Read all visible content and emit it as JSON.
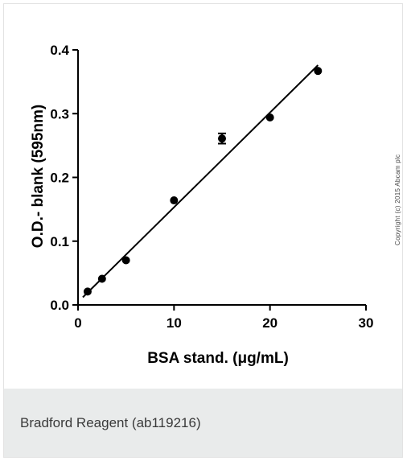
{
  "caption": "Bradford Reagent (ab119216)",
  "copyright": "Copyright (c) 2015 Abcam plc",
  "chart_data": {
    "type": "scatter",
    "title": "",
    "xlabel": "BSA stand. (μg/mL)",
    "ylabel": "O.D.- blank (595nm)",
    "xlim": [
      0,
      30
    ],
    "ylim": [
      0.0,
      0.4
    ],
    "x_ticks": [
      0,
      10,
      20,
      30
    ],
    "x_tick_labels": [
      "0",
      "10",
      "20",
      "30"
    ],
    "y_ticks": [
      0.0,
      0.1,
      0.2,
      0.3,
      0.4
    ],
    "y_tick_labels": [
      "0.0",
      "0.1",
      "0.2",
      "0.3",
      "0.4"
    ],
    "grid": false,
    "points": [
      {
        "x": 1,
        "y": 0.021
      },
      {
        "x": 2.5,
        "y": 0.041
      },
      {
        "x": 5,
        "y": 0.07
      },
      {
        "x": 10,
        "y": 0.164
      },
      {
        "x": 15,
        "y": 0.261,
        "err": 0.008
      },
      {
        "x": 20,
        "y": 0.294
      },
      {
        "x": 25,
        "y": 0.367
      }
    ],
    "fit_line": {
      "x": [
        0.5,
        25
      ],
      "y": [
        0.012,
        0.376
      ]
    },
    "point_color": "#000000"
  }
}
